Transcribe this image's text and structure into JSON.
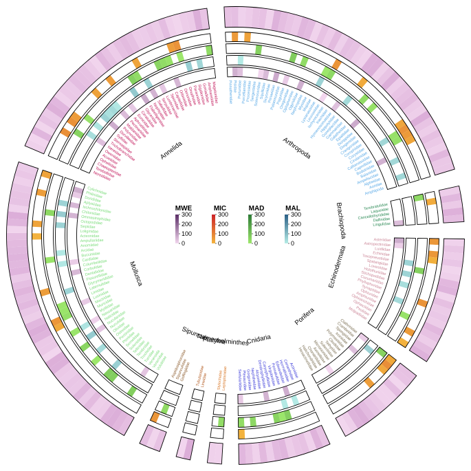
{
  "chart_data": {
    "type": "heatmap",
    "layout": "circular",
    "tracks": [
      "MWE",
      "MIC",
      "MAD",
      "MAL"
    ],
    "legends": [
      {
        "name": "MWE",
        "ticks": [
          "300",
          "200",
          "100",
          "0"
        ],
        "color_high": "#5a2d66",
        "color_low": "#f2d6ee"
      },
      {
        "name": "MIC",
        "ticks": [
          "300",
          "200",
          "100",
          "0"
        ],
        "color_high": "#cc2227",
        "color_low": "#f3b43e"
      },
      {
        "name": "MAD",
        "ticks": [
          "300",
          "200",
          "100",
          "0"
        ],
        "color_high": "#2d7a36",
        "color_low": "#9ee86c"
      },
      {
        "name": "MAL",
        "ticks": [
          "300",
          "200",
          "100",
          "0"
        ],
        "color_high": "#2a5f86",
        "color_low": "#b6ece6"
      }
    ],
    "phyla": [
      {
        "name": "Arthropoda",
        "color": "#5aa9e6",
        "families": [
          "Pinnotheridae",
          "Pisidae",
          "Portunidae",
          "Porcellanidae",
          "Processidae",
          "Sergestidae",
          "Solenoceridae",
          "Squillidae",
          "Sicyoniidae",
          "Penaeidae",
          "Palaemonidae",
          "Paguridae",
          "Oregoniidae",
          "Oplophoridae",
          "Ogyrididae",
          "Nephropidae",
          "Mysidae",
          "Majidae",
          "Lysianassidae",
          "Leucosiidae",
          "Ischyroceridae",
          "Inachidae",
          "Hymenosomatidae",
          "Hippolytidae",
          "Goneplacidae",
          "Gammaridae",
          "Galatheidae",
          "Epialtidae",
          "Dorippidae",
          "Diogenidae",
          "Crangonidae",
          "Corophiidae",
          "Corystidae",
          "Cirolanidae",
          "Callianassidae",
          "Caprellidae",
          "Bodotriidae",
          "Balanidae",
          "Ampeliscidae",
          "Alpheidae",
          "Aoridae",
          "Amphipoda"
        ]
      },
      {
        "name": "Brachiopoda",
        "color": "#2e8b57",
        "families": [
          "Terebratulidae",
          "Laqueidae",
          "Cancellothyrididae",
          "Dallinidae",
          "Lingulidae"
        ]
      },
      {
        "name": "Echinodermata",
        "color": "#cc8899",
        "families": [
          "Asteriidae",
          "Astropectinidae",
          "Luidiidae",
          "Echinidae",
          "Toxopneustidae",
          "Spatangidae",
          "Loveniidae",
          "Holothuriidae",
          "Stichopodidae",
          "Cucumariidae",
          "Phyllophoridae",
          "Synaptidae",
          "Ophiuridae",
          "Amphiuridae",
          "Ophiotrichidae",
          "Ophiactidae",
          "Psolidae",
          "Molpadiidae"
        ]
      },
      {
        "name": "Porifera",
        "color": "#7a6e52",
        "families": [
          "Clathrinidae",
          "Crambeidae",
          "Spongiidae",
          "Irciniidae",
          "Polymastiidae",
          "Cliodidae",
          "Tethyidae",
          "Suberitidae",
          "Microcionidae",
          "Axinellidae",
          "Chondrillidae",
          "Halichondriidae",
          "Hexactinellidae"
        ]
      },
      {
        "name": "Cnidaria",
        "color": "#3b3bd8",
        "families": [
          "Actiniidae",
          "Cerianthidae",
          "Hormathiidae",
          "Edwardsiidae",
          "Pennatulidae",
          "Virgulariidae",
          "Caryophylliidae",
          "Dendrophylliidae",
          "Alcyoniidae",
          "Nephtheidae",
          "Gorgoniidae",
          "Plexauridae",
          "Sertulariidae"
        ]
      },
      {
        "name": "Platyhelminthes",
        "color": "#d97a2b",
        "families": [
          "Leptoplanidae",
          "Stylochidae"
        ]
      },
      {
        "name": "Nemertea",
        "color": "#b35a1f",
        "families": [
          "Lineidae",
          "Tubulanidae"
        ]
      },
      {
        "name": "Sipuncula",
        "color": "#8b5a2b",
        "families": [
          "Golfingiidae",
          "Sipunculidae",
          "Aspidosiphonidae"
        ]
      },
      {
        "name": "Mollusca",
        "color": "#7cdc7c",
        "families": [
          "Volutidae",
          "Veneridae",
          "Veneroida",
          "Turridae",
          "Trochidae",
          "Terebridae",
          "Tellinidae",
          "Solenidae",
          "Semelidae",
          "Pteriidae",
          "Pectinidae",
          "Ostreidae",
          "Olividae",
          "Nuculidae",
          "Nuculanidae",
          "Naticidae",
          "Nassariidae",
          "Mytilidae",
          "Muricidae",
          "Mactridae",
          "Lucinidae",
          "Limidae",
          "Laternulidae",
          "Glycymerididae",
          "Fissurellidae",
          "Dentaliidae",
          "Corbulidae",
          "Columbellidae",
          "Cardiidae",
          "Buccinidae",
          "Arcidae",
          "Anomiidae",
          "Ampullariidae",
          "Acteonidae",
          "Loliginidae",
          "Sepiidae",
          "Octopodidae",
          "Ommastrephidae",
          "Chitonidae",
          "Ischnochitonidae",
          "Aplysiidae",
          "Dorididae",
          "Philinidae",
          "Cylichnidae"
        ]
      },
      {
        "name": "Annelida",
        "color": "#c2185b",
        "families": [
          "Nereididae",
          "Terebellidae",
          "Chaetopteridae",
          "Opheliidae",
          "Acoetidae",
          "Oweniidae",
          "Nereidae",
          "Trichobranchidae",
          "Sternaspidae",
          "Syllidae",
          "Dorvilleidae",
          "Polynoidae",
          "Maldanidae",
          "Pectinariidae",
          "Aphroditidae",
          "Eunicidae",
          "Cirratulidae",
          "Glyceridae",
          "Flabelligeridae",
          "Nephtyidae",
          "Sabellidae",
          "Serpulidae",
          "Lumbrineridae",
          "Spionidae",
          "Capitellidae",
          "Orbiniidae",
          "Oenonidae",
          "Onuphidae",
          "Paraonidae",
          "Sigalionidae",
          "Goniadidae",
          "Ampharetidae",
          "Magelonidae"
        ]
      }
    ]
  }
}
